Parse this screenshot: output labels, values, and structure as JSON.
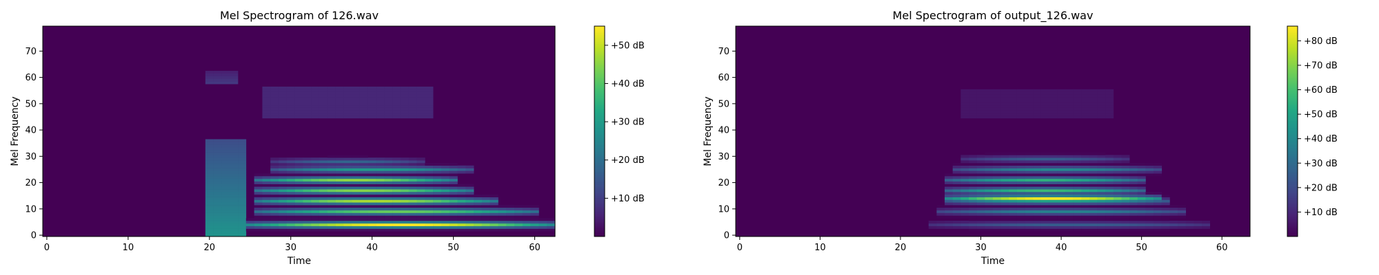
{
  "chart_data": [
    {
      "type": "heatmap",
      "title": "Mel Spectrogram of 126.wav",
      "xlabel": "Time",
      "ylabel": "Mel Frequency",
      "xlim": [
        -0.5,
        62.5
      ],
      "ylim": [
        -0.5,
        79.5
      ],
      "xticks": [
        0,
        10,
        20,
        30,
        40,
        50,
        60
      ],
      "yticks": [
        0,
        10,
        20,
        30,
        40,
        50,
        60,
        70
      ],
      "colormap": "viridis",
      "colorbar": {
        "ticks": [
          10,
          20,
          30,
          40,
          50
        ],
        "labels": [
          "+10 dB",
          "+20 dB",
          "+30 dB",
          "+40 dB",
          "+50 dB"
        ],
        "range": [
          0,
          55
        ]
      },
      "time_frames": 63,
      "mel_bins": 80,
      "components": [
        {
          "type": "burst",
          "t": [
            20,
            24
          ],
          "f": [
            0,
            36
          ],
          "peak_dB": 28
        },
        {
          "type": "burst",
          "t": [
            20,
            23
          ],
          "f": [
            58,
            62
          ],
          "peak_dB": 9
        },
        {
          "type": "harmonic",
          "t": [
            25,
            62
          ],
          "f": 4,
          "peak_dB": 55
        },
        {
          "type": "harmonic",
          "t": [
            26,
            60
          ],
          "f": 9,
          "peak_dB": 42
        },
        {
          "type": "harmonic",
          "t": [
            26,
            55
          ],
          "f": 13,
          "peak_dB": 48
        },
        {
          "type": "harmonic",
          "t": [
            26,
            52
          ],
          "f": 17,
          "peak_dB": 45
        },
        {
          "type": "harmonic",
          "t": [
            26,
            50
          ],
          "f": 21,
          "peak_dB": 46
        },
        {
          "type": "harmonic",
          "t": [
            28,
            52
          ],
          "f": 25,
          "peak_dB": 30
        },
        {
          "type": "harmonic",
          "t": [
            28,
            46
          ],
          "f": 28,
          "peak_dB": 18
        },
        {
          "type": "band",
          "t": [
            27,
            47
          ],
          "f": [
            45,
            56
          ],
          "peak_dB": 6
        }
      ]
    },
    {
      "type": "heatmap",
      "title": "Mel Spectrogram of output_126.wav",
      "xlabel": "Time",
      "ylabel": "Mel Frequency",
      "xlim": [
        -0.5,
        63.5
      ],
      "ylim": [
        -0.5,
        79.5
      ],
      "xticks": [
        0,
        10,
        20,
        30,
        40,
        50,
        60
      ],
      "yticks": [
        0,
        10,
        20,
        30,
        40,
        50,
        60,
        70
      ],
      "colormap": "viridis",
      "colorbar": {
        "ticks": [
          10,
          20,
          30,
          40,
          50,
          60,
          70,
          80
        ],
        "labels": [
          "+10 dB",
          "+20 dB",
          "+30 dB",
          "+40 dB",
          "+50 dB",
          "+60 dB",
          "+70 dB",
          "+80 dB"
        ],
        "range": [
          0,
          86
        ]
      },
      "time_frames": 64,
      "mel_bins": 80,
      "components": [
        {
          "type": "harmonic",
          "t": [
            24,
            58
          ],
          "f": 4,
          "peak_dB": 25
        },
        {
          "type": "harmonic",
          "t": [
            25,
            55
          ],
          "f": 9,
          "peak_dB": 38
        },
        {
          "type": "harmonic",
          "t": [
            26,
            53
          ],
          "f": 13,
          "peak_dB": 50
        },
        {
          "type": "harmonic",
          "t": [
            26,
            52
          ],
          "f": 14,
          "peak_dB": 86
        },
        {
          "type": "harmonic",
          "t": [
            26,
            50
          ],
          "f": 17,
          "peak_dB": 58
        },
        {
          "type": "harmonic",
          "t": [
            26,
            50
          ],
          "f": 21,
          "peak_dB": 55
        },
        {
          "type": "harmonic",
          "t": [
            27,
            52
          ],
          "f": 25,
          "peak_dB": 40
        },
        {
          "type": "harmonic",
          "t": [
            28,
            48
          ],
          "f": 29,
          "peak_dB": 25
        },
        {
          "type": "band",
          "t": [
            28,
            46
          ],
          "f": [
            45,
            55
          ],
          "peak_dB": 5
        }
      ]
    }
  ]
}
